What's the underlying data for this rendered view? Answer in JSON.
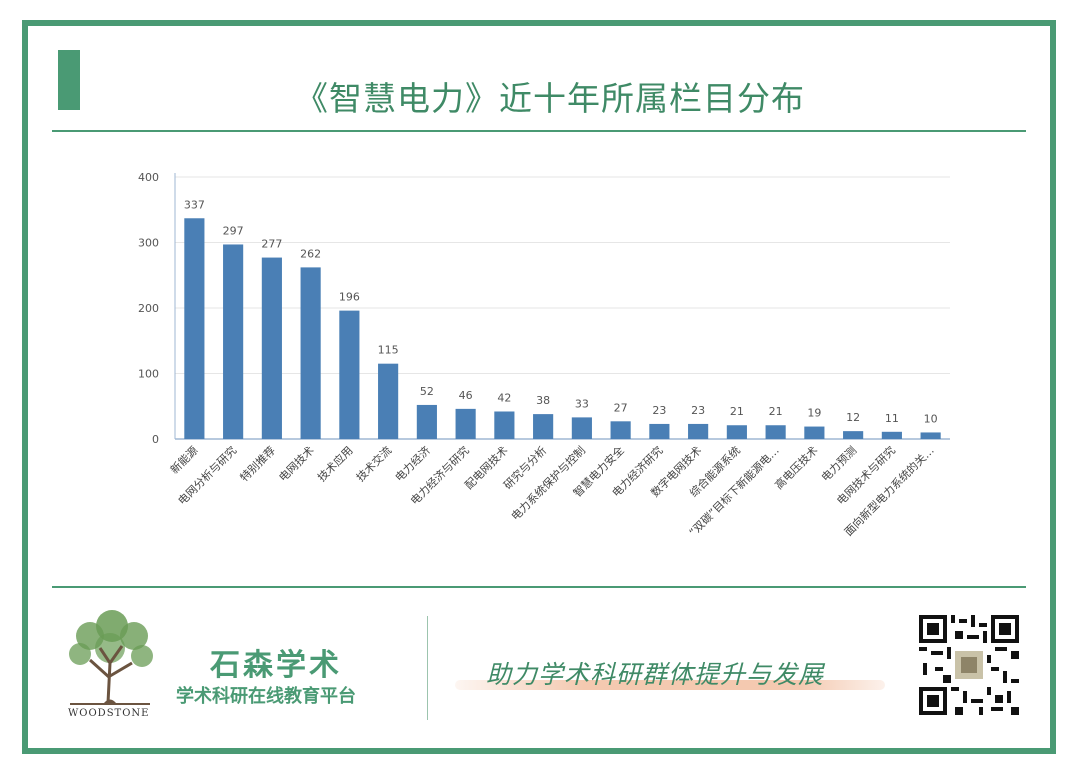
{
  "title": "《智慧电力》近十年所属栏目分布",
  "colors": {
    "accent": "#4a9a74",
    "bar": "#4a7fb5",
    "slogan_brush": "#f4c9b0"
  },
  "chart_data": {
    "type": "bar",
    "title": "《智慧电力》近十年所属栏目分布",
    "categories": [
      "新能源",
      "电网分析与研究",
      "特别推荐",
      "电网技术",
      "技术应用",
      "技术交流",
      "电力经济",
      "电力经济与研究",
      "配电网技术",
      "研究与分析",
      "电力系统保护与控制",
      "智慧电力安全",
      "电力经济研究",
      "数字电网技术",
      "综合能源系统",
      "“双碳”目标下新能源电…",
      "高电压技术",
      "电力预测",
      "电网技术与研究",
      "面向新型电力系统的关…"
    ],
    "values": [
      337,
      297,
      277,
      262,
      196,
      115,
      52,
      46,
      42,
      38,
      33,
      27,
      23,
      23,
      21,
      21,
      19,
      12,
      11,
      10
    ],
    "yticks": [
      0,
      100,
      200,
      300,
      400
    ],
    "ylim": [
      0,
      400
    ],
    "xlabel": "",
    "ylabel": "",
    "grid": true
  },
  "footer": {
    "logo_text": "WOODSTONE",
    "brand_name": "石森学术",
    "brand_sub": "学术科研在线教育平台",
    "slogan": "助力学术科研群体提升与发展",
    "qr_icon": "qr-code-icon"
  }
}
